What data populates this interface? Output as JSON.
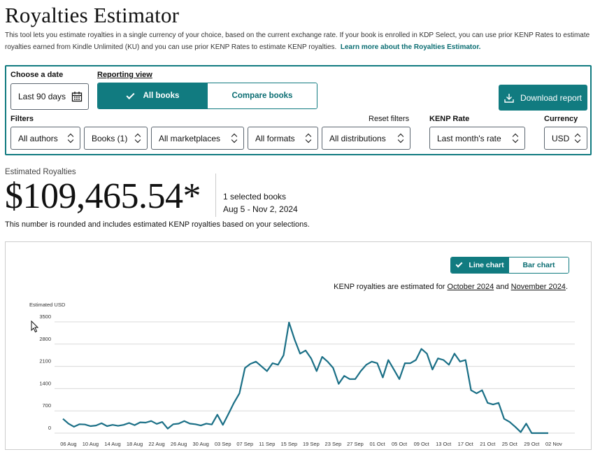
{
  "title": "Royalties Estimator",
  "intro": {
    "text": "This tool lets you estimate royalties in a single currency of your choice, based on the current exchange rate. If your book is enrolled in KDP Select, you can use prior KENP Rates to estimate royalties earned from Kindle Unlimited (KU) and you can use prior KENP Rates to estimate KENP royalties.",
    "link": "Learn more about the Royalties Estimator."
  },
  "controls": {
    "date_label": "Choose a date",
    "date_value": "Last 90 days",
    "view_label": "Reporting view",
    "view_options": [
      "All books",
      "Compare books"
    ],
    "view_selected": "All books",
    "download_label": "Download report",
    "filters_label": "Filters",
    "reset_filters": "Reset filters",
    "filters": [
      "All authors",
      "Books (1)",
      "All marketplaces",
      "All formats",
      "All distributions"
    ],
    "kenp_label": "KENP Rate",
    "kenp_value": "Last month's rate",
    "currency_label": "Currency",
    "currency_value": "USD"
  },
  "summary": {
    "label": "Estimated Royalties",
    "amount": "$109,465.54*",
    "selected_books": "1 selected books",
    "date_range": "Aug 5 - Nov 2, 2024",
    "note": "This number is rounded and includes estimated KENP royalties based on your selections."
  },
  "chart_toggle": {
    "options": [
      "Line chart",
      "Bar chart"
    ],
    "selected": "Line chart"
  },
  "kenp_note": {
    "prefix": "KENP royalties are estimated for ",
    "month1": "October 2024",
    "and": " and ",
    "month2": "November 2024",
    "suffix": "."
  },
  "colors": {
    "accent": "#117b80",
    "line": "#1a6f86",
    "grid": "#d9d9d9"
  },
  "chart_data": {
    "type": "line",
    "ylabel": "Estimated USD",
    "ylim": [
      0,
      3500
    ],
    "yticks": [
      0,
      700,
      1400,
      2100,
      2800,
      3500
    ],
    "xtick_labels": [
      "06 Aug",
      "10 Aug",
      "14 Aug",
      "18 Aug",
      "22 Aug",
      "26 Aug",
      "30 Aug",
      "03 Sep",
      "07 Sep",
      "11 Sep",
      "15 Sep",
      "19 Sep",
      "23 Sep",
      "27 Sep",
      "01 Oct",
      "05 Oct",
      "09 Oct",
      "13 Oct",
      "17 Oct",
      "21 Oct",
      "25 Oct",
      "29 Oct",
      "02 Nov"
    ],
    "x_start": "2024-08-05",
    "series": [
      {
        "values": [
          450,
          300,
          200,
          280,
          270,
          220,
          240,
          310,
          220,
          260,
          230,
          260,
          320,
          250,
          340,
          330,
          380,
          290,
          350,
          140,
          280,
          300,
          380,
          300,
          280,
          240,
          300,
          270,
          580,
          260,
          600,
          950,
          1250,
          2050,
          2180,
          2250,
          2100,
          1950,
          2200,
          2150,
          2450,
          3480,
          2950,
          2500,
          2600,
          2350,
          1950,
          2400,
          2250,
          2050,
          1550,
          1800,
          1700,
          1700,
          1950,
          2150,
          2250,
          2200,
          1750,
          2300,
          2000,
          1700,
          2200,
          2200,
          2300,
          2650,
          2500,
          2000,
          2350,
          2300,
          2150,
          2500,
          2250,
          2300,
          1350,
          1250,
          1350,
          950,
          900,
          950,
          450,
          350,
          200,
          30,
          300,
          0,
          0,
          0,
          0
        ]
      }
    ]
  }
}
